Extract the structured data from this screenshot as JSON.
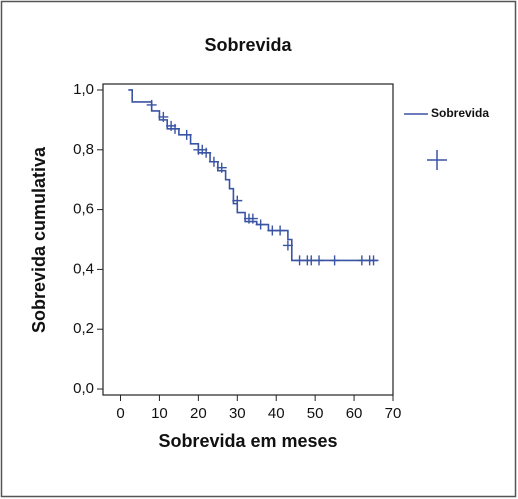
{
  "chart_data": {
    "type": "line",
    "step": true,
    "title": "Sobrevida",
    "xlabel": "Sobrevida em meses",
    "ylabel": "Sobrevida cumulativa",
    "xlim": [
      -4.5,
      70
    ],
    "xticks": [
      0,
      10,
      20,
      30,
      40,
      50,
      60,
      70
    ],
    "ylim": [
      -0.02,
      1.02
    ],
    "yticks": [
      {
        "value": 0,
        "label": "0,0"
      },
      {
        "value": 0.2,
        "label": "0,2"
      },
      {
        "value": 0.4,
        "label": "0,4"
      },
      {
        "value": 0.6,
        "label": "0,6"
      },
      {
        "value": 0.8,
        "label": "0,8"
      },
      {
        "value": 1.0,
        "label": "1,0"
      }
    ],
    "series": [
      {
        "name": "Sobrevida",
        "color": "#3a54a4",
        "x": [
          2,
          3,
          8,
          10,
          12,
          15,
          18,
          20,
          23,
          25,
          27,
          28,
          29,
          30,
          32,
          35,
          38,
          43,
          44,
          66
        ],
        "values": [
          1.0,
          0.96,
          0.93,
          0.9,
          0.87,
          0.85,
          0.82,
          0.79,
          0.76,
          0.73,
          0.7,
          0.67,
          0.62,
          0.59,
          0.56,
          0.55,
          0.53,
          0.5,
          0.43,
          0.43
        ]
      },
      {
        "color": "#3a54a4",
        "marker": "+",
        "x": [
          8,
          11,
          13,
          14,
          17,
          20,
          21,
          22,
          24,
          26,
          30,
          33,
          34,
          36,
          39,
          41,
          43,
          46,
          48,
          49,
          51,
          55,
          62,
          64,
          65
        ],
        "values": [
          0.95,
          0.91,
          0.88,
          0.87,
          0.85,
          0.8,
          0.8,
          0.79,
          0.76,
          0.74,
          0.63,
          0.57,
          0.57,
          0.55,
          0.53,
          0.53,
          0.48,
          0.43,
          0.43,
          0.43,
          0.43,
          0.43,
          0.43,
          0.43,
          0.43
        ]
      }
    ],
    "legend": "right"
  }
}
